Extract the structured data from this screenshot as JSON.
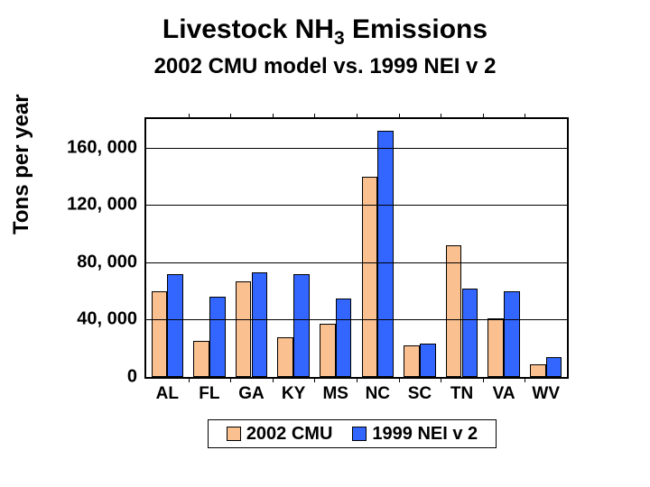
{
  "title_pre": "Livestock NH",
  "title_sub": "3",
  "title_post": " Emissions",
  "title_fontsize": 30,
  "subtitle": "2002 CMU model vs. 1999 NEI v 2",
  "subtitle_fontsize": 24,
  "ylabel": "Tons per year",
  "ylabel_fontsize": 24,
  "chart": {
    "type": "bar",
    "categories": [
      "AL",
      "FL",
      "GA",
      "KY",
      "MS",
      "NC",
      "SC",
      "TN",
      "VA",
      "WV"
    ],
    "series": [
      {
        "name": "2002 CMU",
        "color": "#fac090",
        "values": [
          60000,
          25000,
          67000,
          28000,
          37000,
          140000,
          22000,
          92000,
          41000,
          9000
        ]
      },
      {
        "name": "1999 NEI v 2",
        "color": "#3366ff",
        "values": [
          72000,
          56000,
          73000,
          72000,
          55000,
          172000,
          23000,
          62000,
          60000,
          14000
        ]
      }
    ],
    "ymax": 180000,
    "yticks": [
      0,
      40000,
      80000,
      120000,
      160000
    ],
    "ytick_labels": [
      "0",
      "40, 000",
      "80, 000",
      "120, 000",
      "160, 000"
    ],
    "tick_fontsize": 20,
    "xtick_fontsize": 19,
    "border_color": "#000000",
    "background_color": "#ffffff",
    "bar_width": 0.38,
    "group_gap": 0.05
  },
  "legend": {
    "items": [
      {
        "label": "2002 CMU",
        "color": "#fac090"
      },
      {
        "label": "1999 NEI v 2",
        "color": "#3366ff"
      }
    ],
    "fontsize": 20
  }
}
